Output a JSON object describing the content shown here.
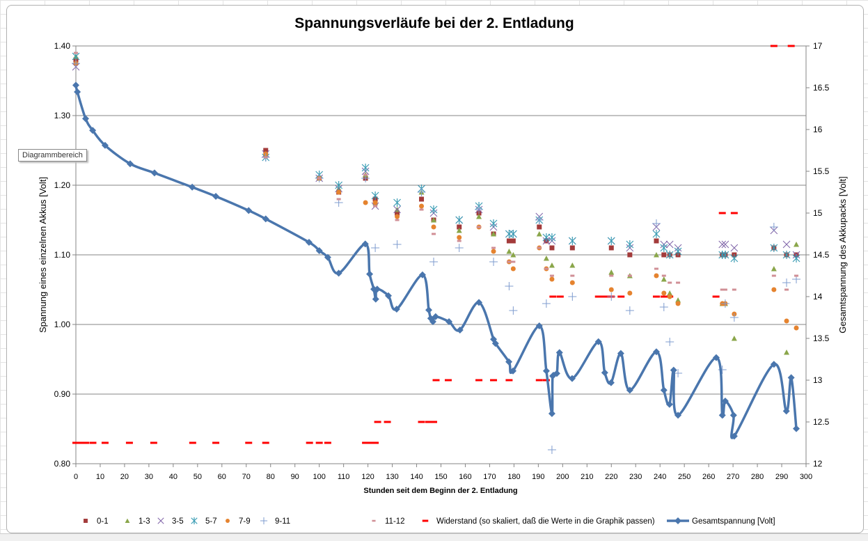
{
  "chart_data": {
    "type": "scatter",
    "title": "Spannungsverläufe bei der 2. Entladung",
    "xlabel": "Stunden seit dem Beginn der 2. Entladung",
    "ylabel": "Spannung eines einzelnen Akkus [Volt]",
    "y2label": "Gesamtspannung des Akkupacks [Volt]",
    "xlim": [
      0,
      300
    ],
    "ylim": [
      0.8,
      1.4
    ],
    "y2lim": [
      12,
      17
    ],
    "xticks": [
      "0",
      "10",
      "20",
      "30",
      "40",
      "50",
      "60",
      "70",
      "80",
      "90",
      "100",
      "110",
      "120",
      "130",
      "140",
      "150",
      "160",
      "170",
      "180",
      "190",
      "200",
      "210",
      "220",
      "230",
      "240",
      "250",
      "260",
      "270",
      "280",
      "290",
      "300"
    ],
    "yticks": [
      "0.80",
      "0.90",
      "1.00",
      "1.10",
      "1.20",
      "1.30",
      "1.40"
    ],
    "y2ticks": [
      "12",
      "12.5",
      "13",
      "13.5",
      "14",
      "14.5",
      "15",
      "15.5",
      "16",
      "16.5",
      "17"
    ],
    "grid": "horizontal major",
    "legend_position": "bottom",
    "x": [
      0,
      78,
      100,
      108,
      119,
      123,
      132,
      142,
      147,
      157.5,
      165.6,
      171.6,
      178,
      179.7,
      190.4,
      193.3,
      195.6,
      204,
      220,
      227.6,
      238.5,
      241.6,
      244,
      247.4,
      265.6,
      266.8,
      270.5,
      286.8,
      292,
      296
    ],
    "series": [
      {
        "name": "0-1",
        "marker": "square",
        "color": "#a33b3b",
        "axis": "left",
        "values": [
          1.38,
          1.25,
          1.21,
          1.19,
          1.21,
          1.18,
          1.16,
          1.18,
          1.15,
          1.14,
          1.16,
          1.13,
          1.12,
          1.12,
          1.14,
          1.12,
          1.11,
          1.11,
          1.11,
          1.1,
          1.12,
          1.1,
          1.1,
          1.1,
          1.1,
          1.1,
          1.1,
          1.11,
          1.1,
          1.1
        ]
      },
      {
        "name": "1-3",
        "marker": "triangle",
        "color": "#8aa64a",
        "axis": "left",
        "values": [
          1.385,
          1.245,
          1.21,
          1.195,
          1.215,
          1.175,
          1.165,
          1.19,
          1.15,
          1.135,
          1.155,
          1.13,
          1.105,
          1.1,
          1.13,
          1.095,
          1.085,
          1.085,
          1.075,
          1.07,
          1.1,
          1.065,
          1.045,
          1.035,
          1.03,
          1.03,
          0.98,
          1.08,
          0.96,
          1.115
        ]
      },
      {
        "name": "3-5",
        "marker": "x",
        "color": "#7f63a8",
        "axis": "left",
        "values": [
          1.37,
          1.245,
          1.21,
          1.195,
          1.22,
          1.17,
          1.165,
          1.195,
          1.16,
          1.15,
          1.165,
          1.14,
          1.13,
          1.13,
          1.155,
          1.12,
          1.12,
          1.12,
          1.12,
          1.11,
          1.14,
          1.115,
          1.115,
          1.11,
          1.115,
          1.115,
          1.11,
          1.135,
          1.115,
          1.1
        ]
      },
      {
        "name": "5-7",
        "marker": "asterisk",
        "color": "#3a9cb4",
        "axis": "left",
        "values": [
          1.385,
          1.24,
          1.215,
          1.2,
          1.225,
          1.185,
          1.175,
          1.195,
          1.165,
          1.15,
          1.17,
          1.145,
          1.13,
          1.13,
          1.15,
          1.125,
          1.125,
          1.12,
          1.12,
          1.115,
          1.13,
          1.11,
          1.1,
          1.105,
          1.1,
          1.1,
          1.095,
          1.11,
          1.1,
          1.095
        ]
      },
      {
        "name": "7-9",
        "marker": "circle",
        "color": "#e5832f",
        "axis": "left",
        "values": [
          1.375,
          1.245,
          1.21,
          1.19,
          1.175,
          1.175,
          1.155,
          1.17,
          1.14,
          1.125,
          1.14,
          1.105,
          1.09,
          1.08,
          1.11,
          1.08,
          1.065,
          1.06,
          1.05,
          1.045,
          1.07,
          1.045,
          1.04,
          1.03,
          1.03,
          1.03,
          1.015,
          1.05,
          1.005,
          0.995
        ]
      },
      {
        "name": "9-11",
        "marker": "plus",
        "color": "#7f9ccf",
        "axis": "left",
        "values": [
          1.375,
          1.24,
          1.21,
          1.175,
          1.21,
          1.11,
          1.115,
          1.19,
          1.09,
          1.11,
          1.165,
          1.09,
          1.055,
          1.02,
          1.15,
          1.03,
          0.82,
          1.04,
          1.04,
          1.02,
          1.145,
          1.025,
          0.975,
          0.93,
          0.935,
          1.03,
          1.01,
          1.14,
          1.06,
          1.065
        ]
      },
      {
        "name": "11-12",
        "marker": "dash",
        "color": "#d08f96",
        "axis": "left",
        "values": [
          1.39,
          1.24,
          1.21,
          1.18,
          1.215,
          1.17,
          1.15,
          1.165,
          1.13,
          1.12,
          1.14,
          1.11,
          1.09,
          1.09,
          1.11,
          1.08,
          1.07,
          1.07,
          1.07,
          1.07,
          1.08,
          1.07,
          1.06,
          1.06,
          1.05,
          1.05,
          1.05,
          1.07,
          1.05,
          1.07
        ]
      }
    ],
    "resistance": {
      "name": "Widerstand (so skaliert, daß die Werte in die Graphik passen)",
      "color": "#ff0000",
      "axis": "right",
      "x": [
        0,
        2,
        4,
        7,
        12,
        22,
        32,
        48,
        57.5,
        71,
        78,
        96,
        100,
        103.5,
        119,
        121,
        123,
        124,
        128,
        142,
        145,
        147,
        148,
        153,
        165.6,
        171.6,
        178,
        190.4,
        193.3,
        196,
        199,
        214.7,
        217.3,
        220,
        224,
        238.5,
        241.6,
        244,
        263,
        265.6,
        270.5,
        286.8,
        293.9
      ],
      "values": [
        12.25,
        12.25,
        12.25,
        12.25,
        12.25,
        12.25,
        12.25,
        12.25,
        12.25,
        12.25,
        12.25,
        12.25,
        12.25,
        12.25,
        12.25,
        12.25,
        12.25,
        12.5,
        12.5,
        12.5,
        12.5,
        12.5,
        13,
        13,
        13,
        13,
        13,
        13,
        13,
        14,
        14,
        14,
        14,
        14,
        14,
        14,
        14,
        14,
        14,
        15,
        15,
        17,
        17
      ]
    },
    "total": {
      "name": "Gesamtspannung [Volt]",
      "color": "#4a76ad",
      "axis": "right",
      "x": [
        0,
        0.6,
        4,
        6.9,
        12,
        22.3,
        32.3,
        47.8,
        57.5,
        71,
        78,
        95.8,
        100,
        103.5,
        108,
        118.9,
        120.7,
        122.4,
        123.2,
        123.8,
        128.4,
        131.8,
        142.4,
        145,
        145.8,
        146.7,
        147.8,
        153.3,
        157.8,
        165.6,
        171.6,
        172.4,
        177.9,
        179.6,
        190.4,
        193.3,
        195.6,
        195.9,
        197.6,
        198.7,
        203.9,
        214.7,
        217.3,
        219.9,
        223.9,
        227.6,
        238.5,
        241.6,
        243.9,
        245.6,
        247.4,
        263.1,
        265.6,
        266.8,
        270.2,
        270.5,
        286.8,
        291.9,
        293.9,
        296
      ],
      "values": [
        16.53,
        16.45,
        16.13,
        15.99,
        15.81,
        15.59,
        15.48,
        15.31,
        15.2,
        15.03,
        14.93,
        14.65,
        14.55,
        14.47,
        14.28,
        14.63,
        14.27,
        14.09,
        13.97,
        14.09,
        14.01,
        13.85,
        14.26,
        13.84,
        13.74,
        13.7,
        13.76,
        13.7,
        13.6,
        13.93,
        13.49,
        13.44,
        13.22,
        13.11,
        13.65,
        13.11,
        12.6,
        13.05,
        13.08,
        13.33,
        13.02,
        13.46,
        13.09,
        12.97,
        13.32,
        12.88,
        13.34,
        12.88,
        12.71,
        13.12,
        12.58,
        13.27,
        12.58,
        12.75,
        12.58,
        12.33,
        13.19,
        12.63,
        13.03,
        12.42
      ]
    }
  },
  "ui": {
    "tooltip": "Diagrammbereich"
  }
}
